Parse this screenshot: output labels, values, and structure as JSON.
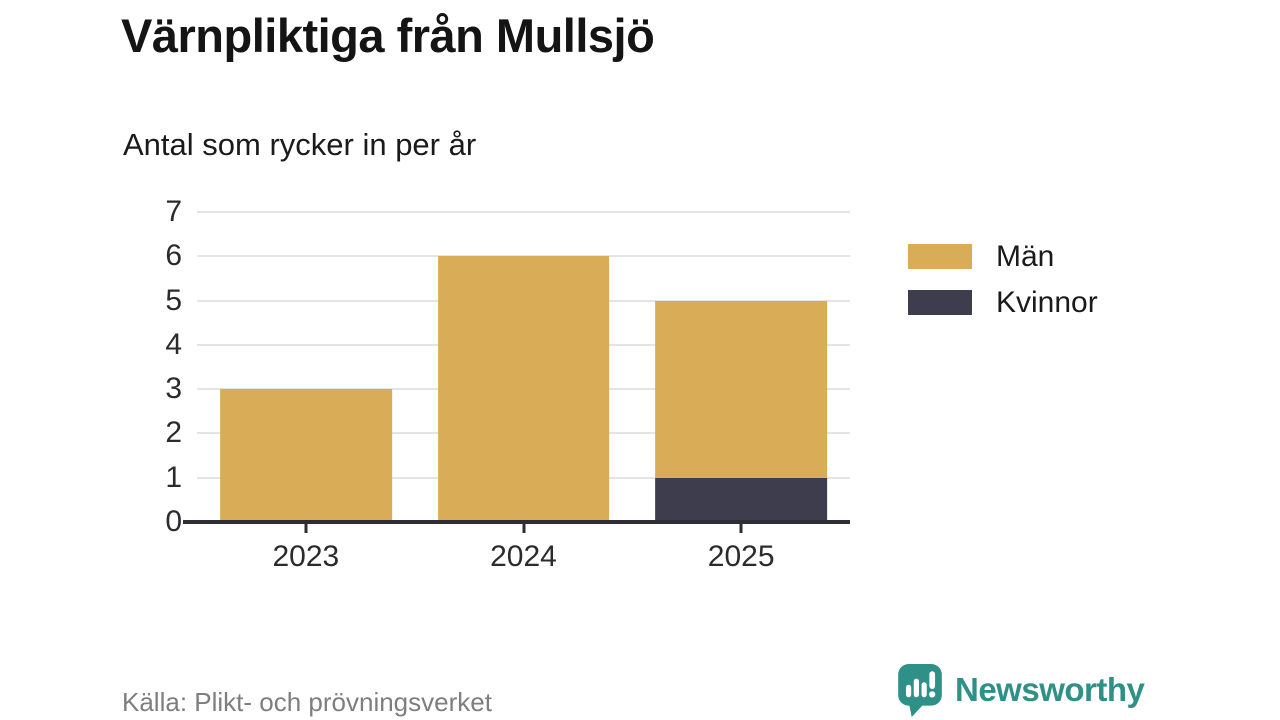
{
  "page": {
    "title": "Värnpliktiga från Mullsjö",
    "subtitle": "Antal som rycker in per år",
    "source": "Källa: Plikt- och prövningsverket",
    "brand": {
      "name": "Newsworthy",
      "color": "#2F9087"
    }
  },
  "chart_data": {
    "type": "bar",
    "stacked": true,
    "title": "Värnpliktiga från Mullsjö",
    "subtitle": "Antal som rycker in per år",
    "categories": [
      "2023",
      "2024",
      "2025"
    ],
    "series": [
      {
        "name": "Män",
        "color": "#D9AC58",
        "values": [
          3,
          6,
          4
        ]
      },
      {
        "name": "Kvinnor",
        "color": "#3E3D4E",
        "values": [
          0,
          0,
          1
        ]
      }
    ],
    "stack_order_bottom_to_top": [
      "Kvinnor",
      "Män"
    ],
    "totals": [
      3,
      6,
      5
    ],
    "xlabel": "",
    "ylabel": "",
    "ylim": [
      0,
      7
    ],
    "yticks": [
      0,
      1,
      2,
      3,
      4,
      5,
      6,
      7
    ],
    "grid": true,
    "legend_position": "right",
    "grid_color": "#E4E4E4",
    "axis_color": "#2E2D33",
    "source": "Källa: Plikt- och prövningsverket"
  }
}
